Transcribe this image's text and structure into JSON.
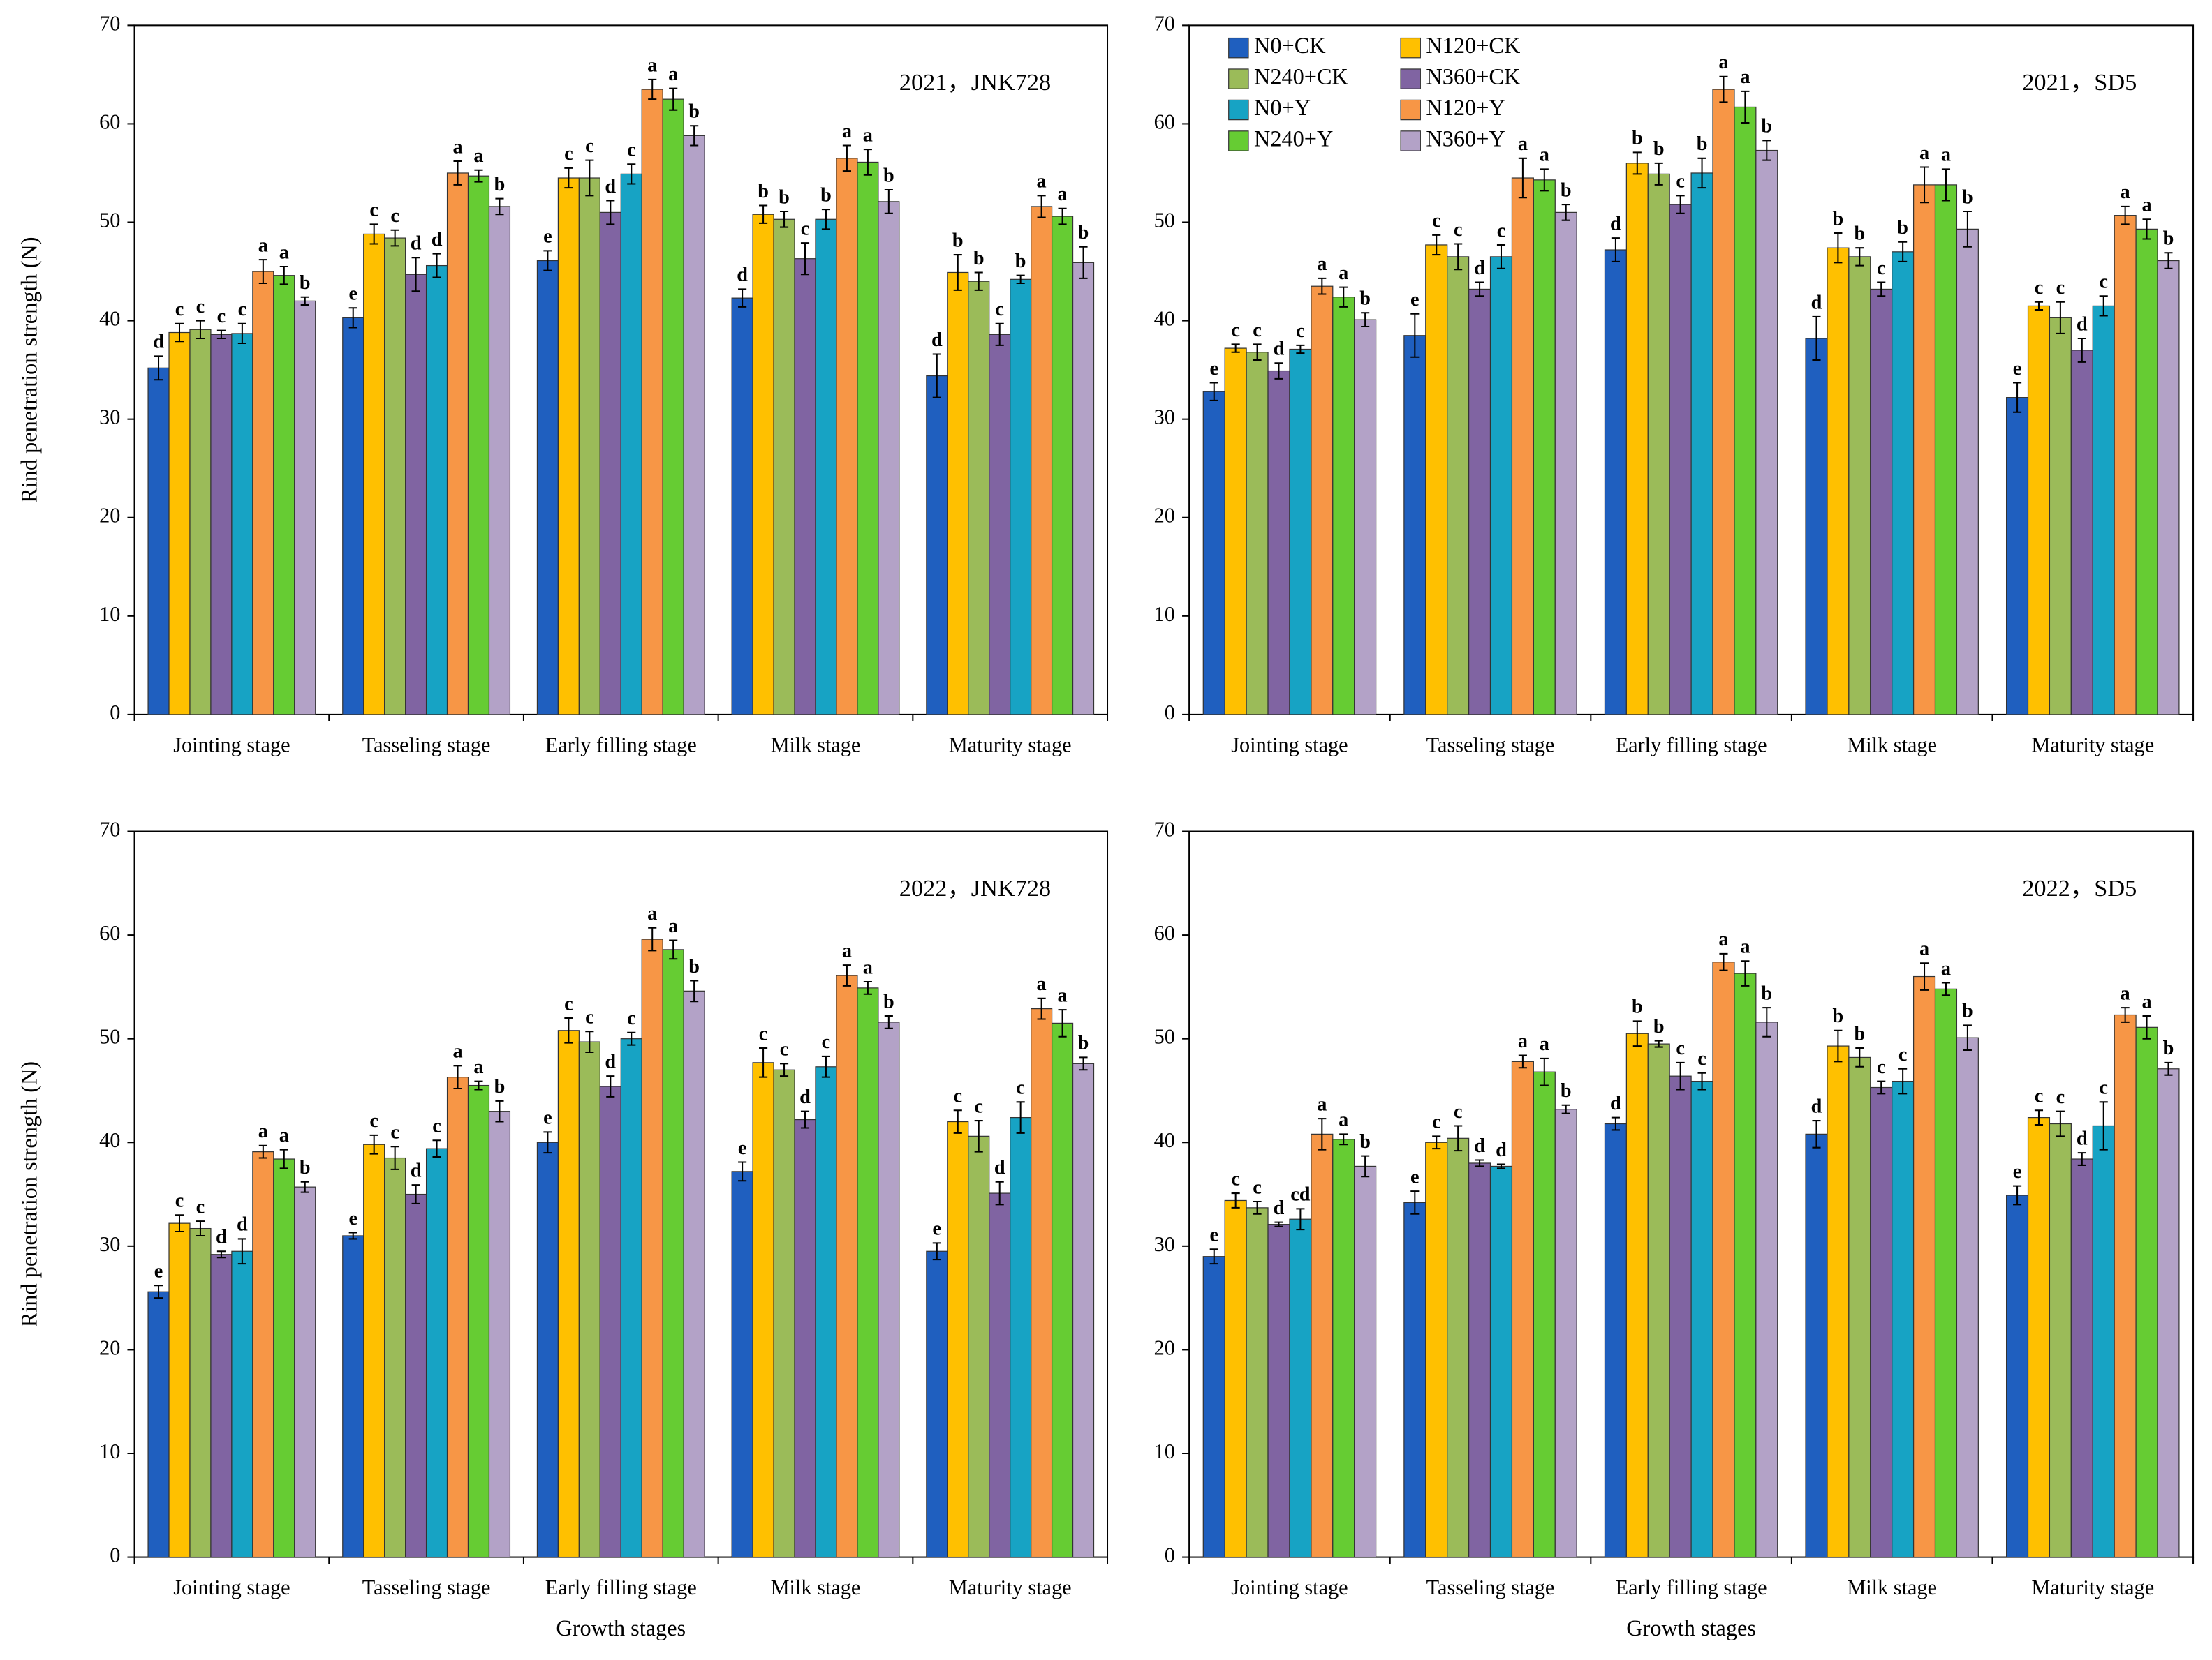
{
  "chart_data": [
    {
      "type": "bar",
      "title": "2021，JNK728",
      "y_label": "Rind penetration strength (N)",
      "categories": [
        "Jointing stage",
        "Tasseling stage",
        "Early filling stage",
        "Milk stage",
        "Maturity stage"
      ],
      "ylim": [
        0,
        70
      ],
      "yticks": [
        0,
        10,
        20,
        30,
        40,
        50,
        60,
        70
      ],
      "series": [
        {
          "color": "#1f5fbf",
          "values": [
            35.2,
            40.3,
            46.1,
            42.3,
            34.4
          ],
          "errors": [
            1.2,
            1.0,
            1.0,
            0.9,
            2.2
          ],
          "letters": [
            "d",
            "e",
            "e",
            "d",
            "d"
          ]
        },
        {
          "color": "#ffc000",
          "values": [
            38.8,
            48.8,
            54.5,
            50.8,
            44.9
          ],
          "errors": [
            0.9,
            1.0,
            1.0,
            0.9,
            1.8
          ],
          "letters": [
            "c",
            "c",
            "c",
            "b",
            "b"
          ]
        },
        {
          "color": "#9bbb59",
          "values": [
            39.1,
            48.4,
            54.5,
            50.3,
            44.0
          ],
          "errors": [
            0.9,
            0.8,
            1.8,
            0.8,
            0.9
          ],
          "letters": [
            "c",
            "c",
            "c",
            "b",
            "b"
          ]
        },
        {
          "color": "#8064a2",
          "values": [
            38.6,
            44.7,
            51.0,
            46.3,
            38.6
          ],
          "errors": [
            0.4,
            1.7,
            1.2,
            1.6,
            1.1
          ],
          "letters": [
            "c",
            "d",
            "d",
            "c",
            "c"
          ]
        },
        {
          "color": "#17a3c4",
          "values": [
            38.7,
            45.6,
            54.9,
            50.3,
            44.2
          ],
          "errors": [
            1.0,
            1.2,
            1.0,
            1.0,
            0.4
          ],
          "letters": [
            "c",
            "d",
            "c",
            "b",
            "b"
          ]
        },
        {
          "color": "#f79646",
          "values": [
            45.0,
            55.0,
            63.5,
            56.5,
            51.6
          ],
          "errors": [
            1.2,
            1.2,
            1.0,
            1.3,
            1.1
          ],
          "letters": [
            "a",
            "a",
            "a",
            "a",
            "a"
          ]
        },
        {
          "color": "#66cc33",
          "values": [
            44.6,
            54.7,
            62.5,
            56.1,
            50.6
          ],
          "errors": [
            0.9,
            0.6,
            1.1,
            1.3,
            0.8
          ],
          "letters": [
            "a",
            "a",
            "a",
            "a",
            "a"
          ]
        },
        {
          "color": "#b3a2c7",
          "values": [
            42.0,
            51.6,
            58.8,
            52.1,
            45.9
          ],
          "errors": [
            0.4,
            0.8,
            1.0,
            1.2,
            1.6
          ],
          "letters": [
            "b",
            "b",
            "b",
            "b",
            "b"
          ]
        }
      ]
    },
    {
      "type": "bar",
      "title": "2021，SD5",
      "legend": "upper left",
      "categories": [
        "Jointing stage",
        "Tasseling stage",
        "Early filling stage",
        "Milk stage",
        "Maturity stage"
      ],
      "ylim": [
        0,
        70
      ],
      "yticks": [
        0,
        10,
        20,
        30,
        40,
        50,
        60,
        70
      ],
      "series": [
        {
          "name": "N0+CK",
          "color": "#1f5fbf",
          "values": [
            32.8,
            38.5,
            47.2,
            38.2,
            32.2
          ],
          "errors": [
            0.9,
            2.2,
            1.2,
            2.2,
            1.5
          ],
          "letters": [
            "e",
            "e",
            "d",
            "d",
            "e"
          ]
        },
        {
          "name": "N120+CK",
          "color": "#ffc000",
          "values": [
            37.2,
            47.7,
            56.0,
            47.4,
            41.5
          ],
          "errors": [
            0.4,
            1.0,
            1.1,
            1.5,
            0.4
          ],
          "letters": [
            "c",
            "c",
            "b",
            "b",
            "c"
          ]
        },
        {
          "name": "N240+CK",
          "color": "#9bbb59",
          "values": [
            36.8,
            46.5,
            54.9,
            46.5,
            40.3
          ],
          "errors": [
            0.8,
            1.3,
            1.1,
            0.9,
            1.6
          ],
          "letters": [
            "c",
            "c",
            "b",
            "b",
            "c"
          ]
        },
        {
          "name": "N360+CK",
          "color": "#8064a2",
          "values": [
            34.9,
            43.2,
            51.8,
            43.2,
            37.0
          ],
          "errors": [
            0.8,
            0.7,
            0.9,
            0.7,
            1.2
          ],
          "letters": [
            "d",
            "d",
            "c",
            "c",
            "d"
          ]
        },
        {
          "name": "N0+Y",
          "color": "#17a3c4",
          "values": [
            37.1,
            46.5,
            55.0,
            47.0,
            41.5
          ],
          "errors": [
            0.4,
            1.2,
            1.5,
            1.0,
            1.0
          ],
          "letters": [
            "c",
            "c",
            "b",
            "b",
            "c"
          ]
        },
        {
          "name": "N120+Y",
          "color": "#f79646",
          "values": [
            43.5,
            54.5,
            63.5,
            53.8,
            50.7
          ],
          "errors": [
            0.8,
            2.0,
            1.3,
            1.8,
            0.9
          ],
          "letters": [
            "a",
            "a",
            "a",
            "a",
            "a"
          ]
        },
        {
          "name": "N240+Y",
          "color": "#66cc33",
          "values": [
            42.4,
            54.3,
            61.7,
            53.8,
            49.3
          ],
          "errors": [
            1.0,
            1.1,
            1.6,
            1.6,
            1.0
          ],
          "letters": [
            "a",
            "a",
            "a",
            "a",
            "a"
          ]
        },
        {
          "name": "N360+Y",
          "color": "#b3a2c7",
          "values": [
            40.1,
            51.0,
            57.3,
            49.3,
            46.1
          ],
          "errors": [
            0.7,
            0.8,
            1.0,
            1.8,
            0.8
          ],
          "letters": [
            "b",
            "b",
            "b",
            "b",
            "b"
          ]
        }
      ]
    },
    {
      "type": "bar",
      "title": "2022，JNK728",
      "y_label": "Rind penetration strength (N)",
      "x_label": "Growth stages",
      "categories": [
        "Jointing stage",
        "Tasseling stage",
        "Early filling stage",
        "Milk stage",
        "Maturity stage"
      ],
      "ylim": [
        0,
        70
      ],
      "yticks": [
        0,
        10,
        20,
        30,
        40,
        50,
        60,
        70
      ],
      "series": [
        {
          "color": "#1f5fbf",
          "values": [
            25.6,
            31.0,
            40.0,
            37.2,
            29.5
          ],
          "errors": [
            0.6,
            0.3,
            1.0,
            0.9,
            0.8
          ],
          "letters": [
            "e",
            "e",
            "e",
            "e",
            "e"
          ]
        },
        {
          "color": "#ffc000",
          "values": [
            32.2,
            39.8,
            50.8,
            47.7,
            42.0
          ],
          "errors": [
            0.8,
            0.9,
            1.2,
            1.4,
            1.1
          ],
          "letters": [
            "c",
            "c",
            "c",
            "c",
            "c"
          ]
        },
        {
          "color": "#9bbb59",
          "values": [
            31.7,
            38.5,
            49.7,
            47.0,
            40.6
          ],
          "errors": [
            0.7,
            1.1,
            1.0,
            0.6,
            1.5
          ],
          "letters": [
            "c",
            "c",
            "c",
            "c",
            "c"
          ]
        },
        {
          "color": "#8064a2",
          "values": [
            29.2,
            35.0,
            45.4,
            42.2,
            35.1
          ],
          "errors": [
            0.3,
            0.9,
            1.0,
            0.8,
            1.1
          ],
          "letters": [
            "d",
            "d",
            "d",
            "d",
            "d"
          ]
        },
        {
          "color": "#17a3c4",
          "values": [
            29.5,
            39.4,
            50.0,
            47.3,
            42.4
          ],
          "errors": [
            1.2,
            0.8,
            0.6,
            1.0,
            1.5
          ],
          "letters": [
            "d",
            "c",
            "c",
            "c",
            "c"
          ]
        },
        {
          "color": "#f79646",
          "values": [
            39.1,
            46.3,
            59.6,
            56.1,
            52.9
          ],
          "errors": [
            0.6,
            1.1,
            1.1,
            1.0,
            1.0
          ],
          "letters": [
            "a",
            "a",
            "a",
            "a",
            "a"
          ]
        },
        {
          "color": "#66cc33",
          "values": [
            38.4,
            45.5,
            58.6,
            54.9,
            51.5
          ],
          "errors": [
            0.9,
            0.4,
            0.9,
            0.6,
            1.3
          ],
          "letters": [
            "a",
            "a",
            "a",
            "a",
            "a"
          ]
        },
        {
          "color": "#b3a2c7",
          "values": [
            35.7,
            43.0,
            54.6,
            51.6,
            47.6
          ],
          "errors": [
            0.5,
            1.0,
            1.0,
            0.6,
            0.6
          ],
          "letters": [
            "b",
            "b",
            "b",
            "b",
            "b"
          ]
        }
      ]
    },
    {
      "type": "bar",
      "title": "2022，SD5",
      "x_label": "Growth stages",
      "categories": [
        "Jointing stage",
        "Tasseling stage",
        "Early filling stage",
        "Milk stage",
        "Maturity stage"
      ],
      "ylim": [
        0,
        70
      ],
      "yticks": [
        0,
        10,
        20,
        30,
        40,
        50,
        60,
        70
      ],
      "series": [
        {
          "color": "#1f5fbf",
          "values": [
            29.0,
            34.2,
            41.8,
            40.8,
            34.9
          ],
          "errors": [
            0.7,
            1.1,
            0.6,
            1.3,
            0.9
          ],
          "letters": [
            "e",
            "e",
            "d",
            "d",
            "e"
          ]
        },
        {
          "color": "#ffc000",
          "values": [
            34.4,
            40.0,
            50.5,
            49.3,
            42.4
          ],
          "errors": [
            0.7,
            0.6,
            1.2,
            1.5,
            0.7
          ],
          "letters": [
            "c",
            "c",
            "b",
            "b",
            "c"
          ]
        },
        {
          "color": "#9bbb59",
          "values": [
            33.7,
            40.4,
            49.5,
            48.2,
            41.8
          ],
          "errors": [
            0.6,
            1.2,
            0.3,
            0.9,
            1.2
          ],
          "letters": [
            "c",
            "c",
            "b",
            "b",
            "c"
          ]
        },
        {
          "color": "#8064a2",
          "values": [
            32.1,
            38.0,
            46.4,
            45.3,
            38.4
          ],
          "errors": [
            0.2,
            0.3,
            1.3,
            0.6,
            0.6
          ],
          "letters": [
            "d",
            "d",
            "c",
            "c",
            "d"
          ]
        },
        {
          "color": "#17a3c4",
          "values": [
            32.6,
            37.7,
            45.9,
            45.9,
            41.6
          ],
          "errors": [
            1.0,
            0.2,
            0.8,
            1.2,
            2.3
          ],
          "letters": [
            "cd",
            "d",
            "c",
            "c",
            "c"
          ]
        },
        {
          "color": "#f79646",
          "values": [
            40.8,
            47.8,
            57.4,
            56.0,
            52.3
          ],
          "errors": [
            1.5,
            0.6,
            0.8,
            1.3,
            0.7
          ],
          "letters": [
            "a",
            "a",
            "a",
            "a",
            "a"
          ]
        },
        {
          "color": "#66cc33",
          "values": [
            40.3,
            46.8,
            56.3,
            54.8,
            51.1
          ],
          "errors": [
            0.5,
            1.3,
            1.2,
            0.6,
            1.1
          ],
          "letters": [
            "a",
            "a",
            "a",
            "a",
            "a"
          ]
        },
        {
          "color": "#b3a2c7",
          "values": [
            37.7,
            43.2,
            51.6,
            50.1,
            47.1
          ],
          "errors": [
            1.0,
            0.4,
            1.4,
            1.2,
            0.6
          ],
          "letters": [
            "b",
            "b",
            "b",
            "b",
            "b"
          ]
        }
      ]
    }
  ]
}
